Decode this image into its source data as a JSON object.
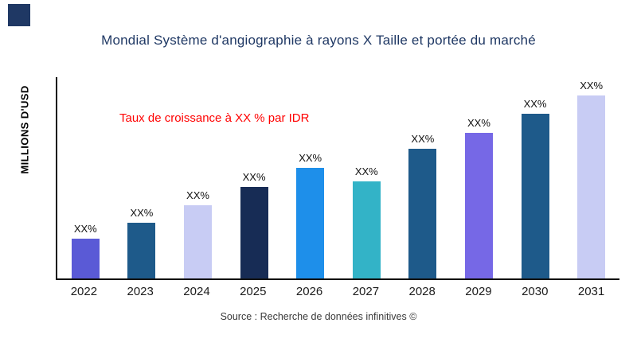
{
  "header": {
    "logo_color": "#1F3864",
    "title": "Mondial Système d'angiographie à rayons X Taille et portée du marché",
    "title_color": "#1F3864"
  },
  "footer": {
    "source": "Source : Recherche de données infinitives ©"
  },
  "chart_data": {
    "type": "bar",
    "title": "Mondial Système d'angiographie à rayons X Taille et portée du marché",
    "ylabel": "MILLIONS D'USD",
    "xlabel": "",
    "annotation": "Taux de croissance à XX % par IDR",
    "annotation_color": "#FF0000",
    "grid": false,
    "legend": "none",
    "categories": [
      "2022",
      "2023",
      "2024",
      "2025",
      "2026",
      "2027",
      "2028",
      "2029",
      "2030",
      "2031"
    ],
    "value_labels": [
      "XX%",
      "XX%",
      "XX%",
      "XX%",
      "XX%",
      "XX%",
      "XX%",
      "XX%",
      "XX%",
      "XX%"
    ],
    "values_relative_pct": [
      19.6,
      27.8,
      36.5,
      45.5,
      55.0,
      48.2,
      64.3,
      72.2,
      82.0,
      91.0
    ],
    "bar_colors": [
      "#5A5AD6",
      "#1E5A8A",
      "#C8CCF4",
      "#172C55",
      "#1E8FEA",
      "#33B3C7",
      "#1E5A8A",
      "#7668E6",
      "#1E5A8A",
      "#C8CCF4"
    ],
    "axis_color": "#111111"
  }
}
